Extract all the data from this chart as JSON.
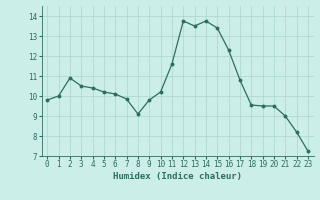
{
  "x": [
    0,
    1,
    2,
    3,
    4,
    5,
    6,
    7,
    8,
    9,
    10,
    11,
    12,
    13,
    14,
    15,
    16,
    17,
    18,
    19,
    20,
    21,
    22,
    23
  ],
  "y": [
    9.8,
    10.0,
    10.9,
    10.5,
    10.4,
    10.2,
    10.1,
    9.85,
    9.1,
    9.8,
    10.2,
    11.6,
    13.75,
    13.5,
    13.75,
    13.4,
    12.3,
    10.8,
    9.55,
    9.5,
    9.5,
    9.0,
    8.2,
    7.25
  ],
  "xlabel": "Humidex (Indice chaleur)",
  "xlim": [
    -0.5,
    23.5
  ],
  "ylim": [
    7,
    14.5
  ],
  "yticks": [
    7,
    8,
    9,
    10,
    11,
    12,
    13,
    14
  ],
  "xticks": [
    0,
    1,
    2,
    3,
    4,
    5,
    6,
    7,
    8,
    9,
    10,
    11,
    12,
    13,
    14,
    15,
    16,
    17,
    18,
    19,
    20,
    21,
    22,
    23
  ],
  "line_color": "#2e6e60",
  "bg_color": "#cceee8",
  "grid_color": "#aad4cc",
  "tick_fontsize": 5.5,
  "label_fontsize": 6.5
}
